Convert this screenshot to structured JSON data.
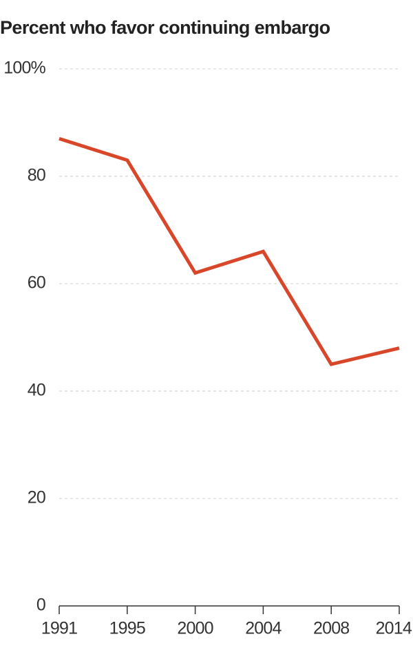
{
  "chart_data": {
    "type": "line",
    "title": "Percent who favor continuing embargo",
    "categories": [
      "1991",
      "1995",
      "2000",
      "2004",
      "2008",
      "2014"
    ],
    "values": [
      87,
      83,
      62,
      66,
      45,
      48
    ],
    "color": "#d9472b",
    "ylim": [
      0,
      100
    ],
    "yticks": [
      0,
      20,
      40,
      60,
      80,
      {
        "value": 100,
        "label": "100%"
      }
    ],
    "grid": true
  }
}
